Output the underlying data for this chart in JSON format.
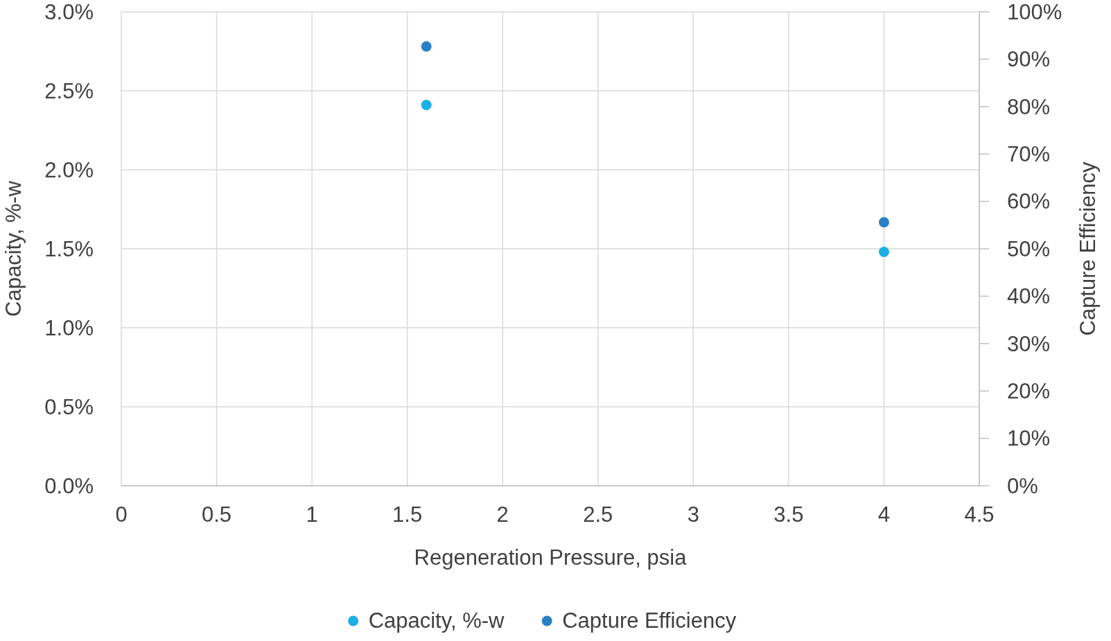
{
  "chart_data": {
    "type": "scatter",
    "xlabel": "Regeneration Pressure, psia",
    "ylabel": "Capacity, %-w",
    "y2label": "Capture Efficiency",
    "x": [
      1.6,
      4
    ],
    "series": [
      {
        "name": "Capacity, %-w",
        "color": "#1eaee6",
        "values": [
          2.41,
          1.48
        ]
      },
      {
        "name": "Capture Efficiency",
        "color": "#2a80c6",
        "values": [
          92.7,
          55.6
        ],
        "axis": "y2"
      }
    ],
    "xlim": [
      0,
      4.5
    ],
    "xticks": [
      0,
      0.5,
      1,
      1.5,
      2,
      2.5,
      3,
      3.5,
      4,
      4.5
    ],
    "ylim": [
      0,
      3
    ],
    "yticks": [
      {
        "value": 0,
        "label": "0.0%"
      },
      {
        "value": 0.5,
        "label": "0.5%"
      },
      {
        "value": 1,
        "label": "1.0%"
      },
      {
        "value": 1.5,
        "label": "1.5%"
      },
      {
        "value": 2,
        "label": "2.0%"
      },
      {
        "value": 2.5,
        "label": "2.5%"
      },
      {
        "value": 3,
        "label": "3.0%"
      }
    ],
    "y2lim": [
      0,
      100
    ],
    "y2ticks": [
      {
        "value": 0,
        "label": "0%"
      },
      {
        "value": 10,
        "label": "10%"
      },
      {
        "value": 20,
        "label": "20%"
      },
      {
        "value": 30,
        "label": "30%"
      },
      {
        "value": 40,
        "label": "40%"
      },
      {
        "value": 50,
        "label": "50%"
      },
      {
        "value": 60,
        "label": "60%"
      },
      {
        "value": 70,
        "label": "70%"
      },
      {
        "value": 80,
        "label": "80%"
      },
      {
        "value": 90,
        "label": "90%"
      },
      {
        "value": 100,
        "label": "100%"
      }
    ],
    "grid": true,
    "legend": "bottom",
    "marker": "circle"
  }
}
